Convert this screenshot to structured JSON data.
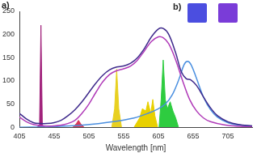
{
  "chart_data": {
    "type": "line",
    "panel_labels": [
      "a)",
      "b)"
    ],
    "x_label": "Wavelength [nm]",
    "xlim": [
      405,
      740
    ],
    "xticks": [
      405,
      455,
      505,
      555,
      605,
      655,
      705
    ],
    "ylim": [
      0,
      250
    ],
    "yticks": [
      0,
      50,
      100,
      150,
      200,
      250
    ],
    "grid": false,
    "series": [
      {
        "type": "line",
        "color": "#3f2a8c",
        "x": [
          405,
          415,
          425,
          435,
          445,
          455,
          465,
          475,
          485,
          495,
          505,
          515,
          525,
          535,
          545,
          555,
          565,
          575,
          585,
          595,
          605,
          612,
          620,
          630,
          638,
          645,
          652,
          660,
          670,
          680,
          690,
          705,
          720,
          740
        ],
        "values": [
          30,
          18,
          10,
          8,
          8,
          10,
          15,
          25,
          38,
          55,
          75,
          95,
          112,
          124,
          130,
          132,
          138,
          150,
          170,
          195,
          212,
          213,
          200,
          160,
          120,
          105,
          102,
          90,
          65,
          42,
          25,
          12,
          6,
          3
        ]
      },
      {
        "type": "line",
        "color": "#b03ab8",
        "x": [
          405,
          415,
          425,
          440,
          455,
          470,
          485,
          495,
          505,
          515,
          525,
          535,
          545,
          555,
          565,
          575,
          585,
          595,
          605,
          612,
          620,
          630,
          640,
          650,
          660,
          670,
          680,
          700,
          720,
          740
        ],
        "values": [
          22,
          12,
          6,
          3,
          3,
          6,
          15,
          30,
          50,
          75,
          98,
          114,
          122,
          126,
          132,
          145,
          165,
          185,
          195,
          193,
          180,
          145,
          100,
          60,
          35,
          20,
          12,
          5,
          2,
          1
        ]
      },
      {
        "type": "line",
        "color": "#4a8fe0",
        "x": [
          405,
          450,
          500,
          540,
          570,
          590,
          605,
          615,
          625,
          635,
          642,
          647,
          652,
          660,
          670,
          680,
          690,
          705,
          720,
          740
        ],
        "values": [
          0,
          1,
          5,
          12,
          20,
          30,
          40,
          50,
          70,
          105,
          135,
          142,
          135,
          105,
          65,
          38,
          22,
          10,
          5,
          2
        ]
      },
      {
        "type": "area",
        "color": "#a0207a",
        "x": [
          430,
          434,
          436,
          438,
          442
        ],
        "values": [
          0,
          5,
          220,
          5,
          0
        ]
      },
      {
        "type": "area",
        "color": "#d83a5a",
        "x": [
          482,
          487,
          490,
          493,
          498
        ],
        "values": [
          0,
          8,
          15,
          8,
          0
        ]
      },
      {
        "type": "area",
        "color": "#e8d020",
        "x": [
          538,
          542,
          545,
          548,
          552
        ],
        "values": [
          0,
          40,
          125,
          40,
          0
        ]
      },
      {
        "type": "area",
        "color": "#e8d000",
        "x": [
          570,
          578,
          582,
          587,
          590,
          594,
          597,
          600,
          604
        ],
        "values": [
          0,
          20,
          40,
          35,
          55,
          30,
          60,
          25,
          0
        ]
      },
      {
        "type": "area",
        "color": "#2ecc40",
        "x": [
          606,
          609,
          612,
          615,
          618,
          622,
          626,
          630,
          634
        ],
        "values": [
          0,
          60,
          145,
          60,
          40,
          55,
          35,
          20,
          0
        ]
      }
    ]
  }
}
